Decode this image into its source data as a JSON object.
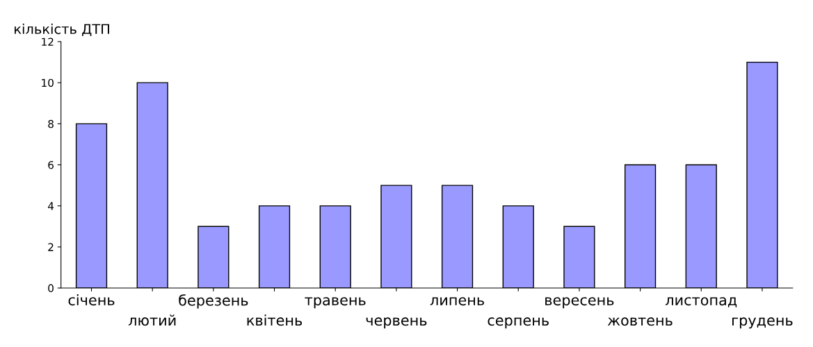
{
  "chart_data": {
    "type": "bar",
    "ylabel": "кількість ДТП",
    "categories": [
      "січень",
      "лютий",
      "березень",
      "квітень",
      "травень",
      "червень",
      "липень",
      "серпень",
      "вересень",
      "жовтень",
      "листопад",
      "грудень"
    ],
    "values": [
      8,
      10,
      3,
      4,
      4,
      5,
      5,
      4,
      3,
      6,
      6,
      11
    ],
    "color": "#9999ff",
    "ylim": [
      0,
      12
    ],
    "yticks": [
      0,
      2,
      4,
      6,
      8,
      10,
      12
    ],
    "grid": false,
    "legend": false
  }
}
